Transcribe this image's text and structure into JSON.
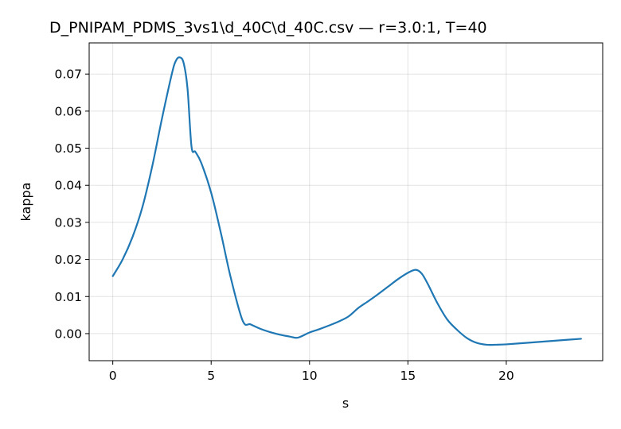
{
  "chart_data": {
    "type": "line",
    "title": "D_PNIPAM_PDMS_3vs1\\d_40C\\d_40C.csv — r=3.0:1, T=40",
    "xlabel": "s",
    "ylabel": "kappa",
    "xlim": [
      -1.2,
      24.9
    ],
    "ylim": [
      -0.0073,
      0.0784
    ],
    "x_ticks": [
      0,
      5,
      10,
      15,
      20
    ],
    "y_ticks": [
      0.0,
      0.01,
      0.02,
      0.03,
      0.04,
      0.05,
      0.06,
      0.07
    ],
    "x_tick_labels": [
      "0",
      "5",
      "10",
      "15",
      "20"
    ],
    "y_tick_labels": [
      "0.00",
      "0.01",
      "0.02",
      "0.03",
      "0.04",
      "0.05",
      "0.06",
      "0.07"
    ],
    "grid": true,
    "series": [
      {
        "color": "#1f77b4",
        "x": [
          0,
          0.5,
          1.0,
          1.5,
          2.0,
          2.5,
          3.0,
          3.2,
          3.4,
          3.6,
          3.8,
          4.0,
          4.2,
          4.5,
          5.0,
          5.5,
          6.0,
          6.6,
          7.0,
          7.5,
          8.0,
          8.5,
          9.0,
          9.4,
          10.0,
          10.5,
          11.0,
          11.5,
          12.0,
          12.5,
          13.0,
          13.5,
          14.0,
          14.5,
          15.0,
          15.4,
          15.7,
          16.0,
          16.5,
          17.0,
          17.5,
          18.0,
          18.5,
          19.0,
          19.5,
          20.0,
          21.0,
          22.0,
          23.0,
          23.8
        ],
        "y": [
          0.0155,
          0.02,
          0.026,
          0.034,
          0.045,
          0.058,
          0.07,
          0.0735,
          0.0745,
          0.073,
          0.066,
          0.0505,
          0.049,
          0.046,
          0.038,
          0.027,
          0.015,
          0.0035,
          0.0025,
          0.0013,
          0.0004,
          -0.0003,
          -0.0008,
          -0.0011,
          0.0003,
          0.0012,
          0.0022,
          0.0033,
          0.0047,
          0.007,
          0.0088,
          0.0107,
          0.0127,
          0.0147,
          0.0164,
          0.0172,
          0.0162,
          0.0135,
          0.0082,
          0.0038,
          0.001,
          -0.0012,
          -0.0025,
          -0.003,
          -0.003,
          -0.0029,
          -0.0025,
          -0.0021,
          -0.0017,
          -0.0014
        ]
      }
    ]
  }
}
